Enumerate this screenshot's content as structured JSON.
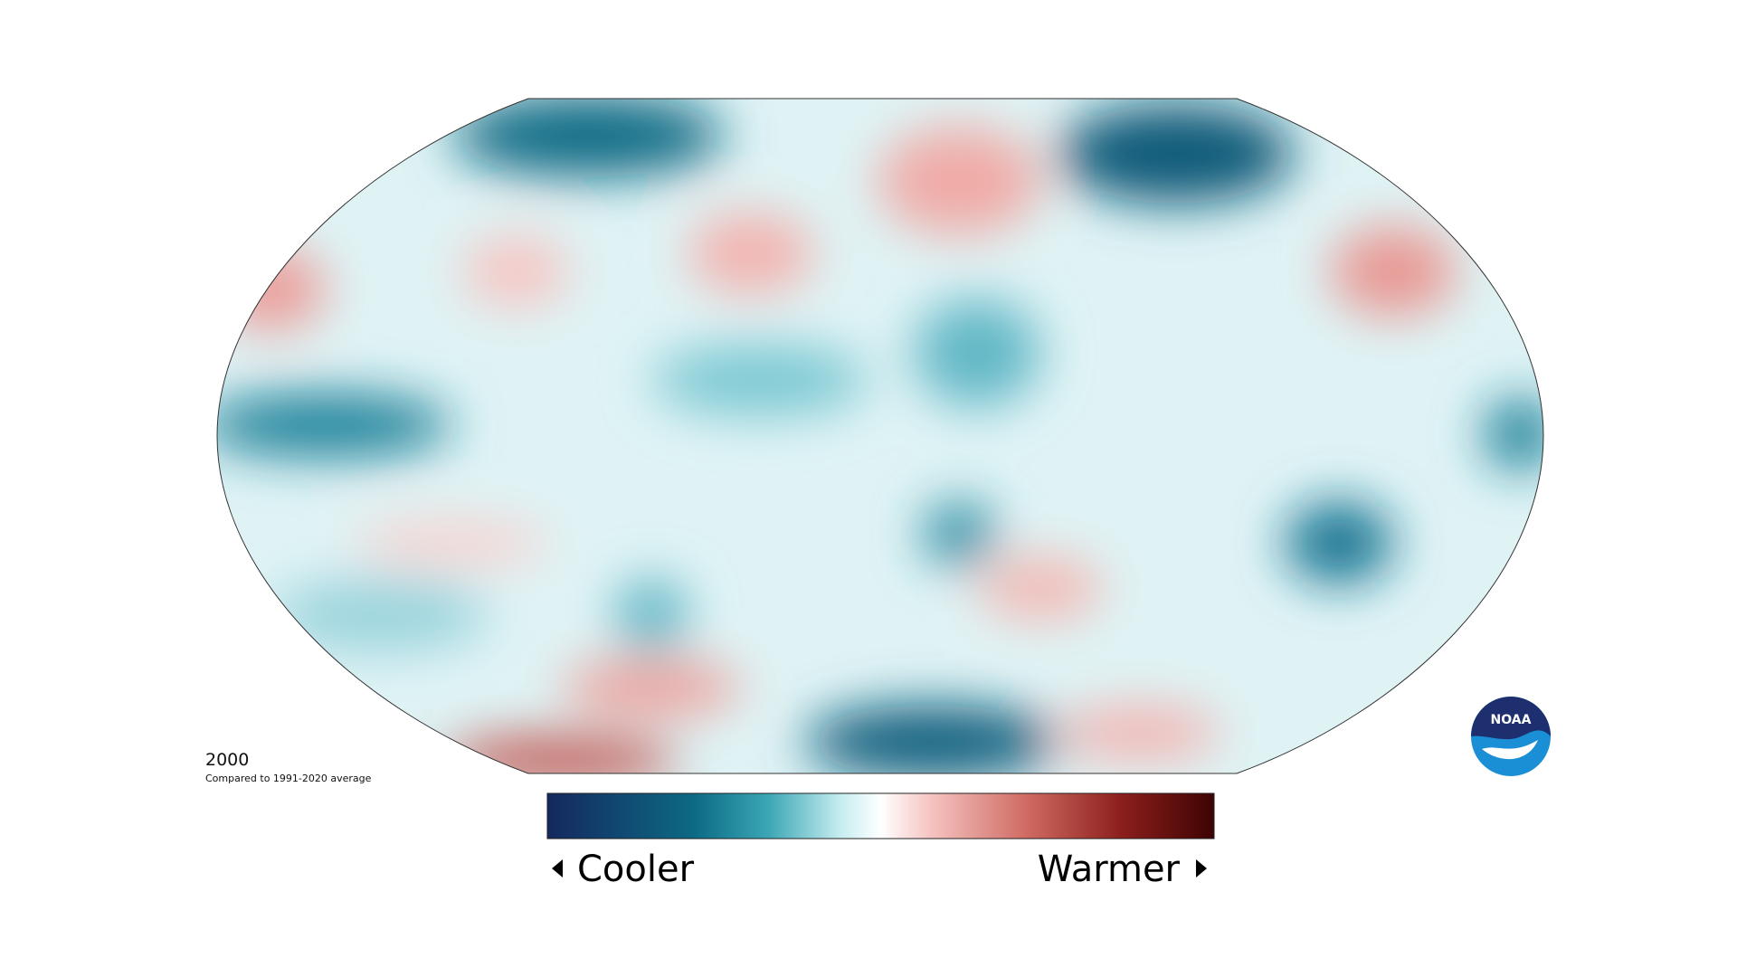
{
  "map": {
    "year": "2000",
    "caption": "Compared to 1991-2020 average"
  },
  "legend": {
    "low": "Cooler",
    "high": "Warmer"
  },
  "logo": "NOAA"
}
